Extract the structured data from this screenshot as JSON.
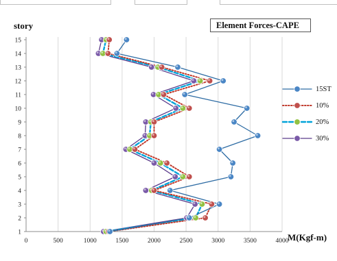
{
  "chart_data": {
    "type": "line",
    "title": "Element Forces-CAPE",
    "ylabel": "story",
    "xlabel": "M(Kgf-m)",
    "xlim": [
      0,
      4000
    ],
    "ylim": [
      1,
      15
    ],
    "x_ticks": [
      "0",
      "500",
      "1000",
      "1500",
      "2000",
      "2500",
      "3000",
      "3500",
      "4000"
    ],
    "y_ticks": [
      "1",
      "2",
      "3",
      "4",
      "5",
      "6",
      "7",
      "8",
      "9",
      "10",
      "11",
      "12",
      "13",
      "14",
      "15"
    ],
    "grid": "vertical",
    "legend_position": "right",
    "orientation": "story-vertical",
    "series": [
      {
        "name": "15ST",
        "color": "#2e6ca4",
        "marker": "#4a86c5",
        "line_style": "solid",
        "points": [
          [
            1310,
            1
          ],
          [
            2550,
            2
          ],
          [
            3020,
            3
          ],
          [
            2250,
            4
          ],
          [
            3200,
            5
          ],
          [
            3230,
            6
          ],
          [
            3020,
            7
          ],
          [
            3620,
            8
          ],
          [
            3250,
            9
          ],
          [
            3450,
            10
          ],
          [
            2480,
            11
          ],
          [
            3080,
            12
          ],
          [
            2370,
            13
          ],
          [
            1420,
            14
          ],
          [
            1570,
            15
          ]
        ]
      },
      {
        "name": "10%",
        "color": "#c0392b",
        "marker": "#c0504d",
        "line_style": "dotted",
        "points": [
          [
            1290,
            1
          ],
          [
            2800,
            2
          ],
          [
            2900,
            3
          ],
          [
            2000,
            4
          ],
          [
            2550,
            5
          ],
          [
            2200,
            6
          ],
          [
            1700,
            7
          ],
          [
            2000,
            8
          ],
          [
            2000,
            9
          ],
          [
            2550,
            10
          ],
          [
            2150,
            11
          ],
          [
            2870,
            12
          ],
          [
            2120,
            13
          ],
          [
            1280,
            14
          ],
          [
            1300,
            15
          ]
        ]
      },
      {
        "name": "20%",
        "color": "#00a3d9",
        "marker": "#92c142",
        "line_style": "dashed",
        "points": [
          [
            1250,
            1
          ],
          [
            2650,
            2
          ],
          [
            2750,
            3
          ],
          [
            1960,
            4
          ],
          [
            2450,
            5
          ],
          [
            2100,
            6
          ],
          [
            1620,
            7
          ],
          [
            1930,
            8
          ],
          [
            1950,
            9
          ],
          [
            2450,
            10
          ],
          [
            2070,
            11
          ],
          [
            2720,
            12
          ],
          [
            2060,
            13
          ],
          [
            1200,
            14
          ],
          [
            1250,
            15
          ]
        ]
      },
      {
        "name": "30%",
        "color": "#5a3a8a",
        "marker": "#7a5aa8",
        "line_style": "solid",
        "points": [
          [
            1210,
            1
          ],
          [
            2510,
            2
          ],
          [
            2640,
            3
          ],
          [
            1870,
            4
          ],
          [
            2330,
            5
          ],
          [
            2000,
            6
          ],
          [
            1560,
            7
          ],
          [
            1860,
            8
          ],
          [
            1870,
            9
          ],
          [
            2340,
            10
          ],
          [
            1990,
            11
          ],
          [
            2620,
            12
          ],
          [
            1960,
            13
          ],
          [
            1130,
            14
          ],
          [
            1180,
            15
          ]
        ]
      }
    ]
  }
}
